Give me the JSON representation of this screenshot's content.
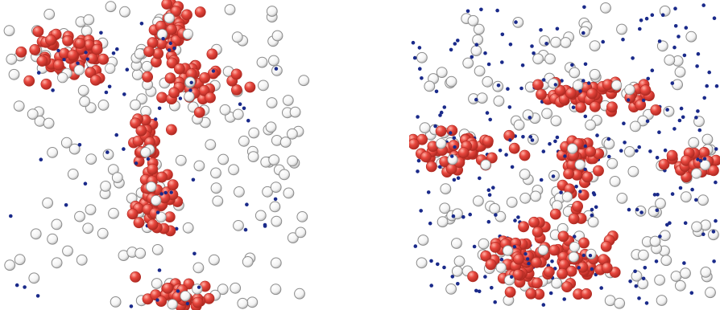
{
  "figure": {
    "background": "#ffffff",
    "colors": {
      "cluster_sphere": "#e8473e",
      "cluster_sphere_dark": "#b02a22",
      "free_sphere": "#f2f2f2",
      "free_sphere_edge": "#8c8c8c",
      "small_particle": "#1a2a8a"
    },
    "panels": [
      {
        "id": "left",
        "seed": 1337,
        "free_spheres": 170,
        "small_particles": 40,
        "clusters": [
          {
            "center": [
              0.22,
              0.19
            ],
            "spread": [
              0.12,
              0.08
            ],
            "count": 55
          },
          {
            "center": [
              0.54,
              0.1
            ],
            "spread": [
              0.06,
              0.08
            ],
            "count": 40
          },
          {
            "center": [
              0.62,
              0.26
            ],
            "spread": [
              0.08,
              0.07
            ],
            "count": 38
          },
          {
            "center": [
              0.47,
              0.47
            ],
            "spread": [
              0.04,
              0.09
            ],
            "count": 28
          },
          {
            "center": [
              0.5,
              0.65
            ],
            "spread": [
              0.06,
              0.09
            ],
            "count": 42
          },
          {
            "center": [
              0.56,
              0.95
            ],
            "spread": [
              0.09,
              0.04
            ],
            "count": 36
          }
        ]
      },
      {
        "id": "right",
        "seed": 2024,
        "free_spheres": 175,
        "small_particles": 230,
        "clusters": [
          {
            "center": [
              0.61,
              0.31
            ],
            "spread": [
              0.15,
              0.04
            ],
            "count": 52
          },
          {
            "center": [
              0.54,
              0.53
            ],
            "spread": [
              0.05,
              0.12
            ],
            "count": 48
          },
          {
            "center": [
              0.16,
              0.48
            ],
            "spread": [
              0.14,
              0.06
            ],
            "count": 46
          },
          {
            "center": [
              0.36,
              0.84
            ],
            "spread": [
              0.1,
              0.08
            ],
            "count": 60
          },
          {
            "center": [
              0.55,
              0.84
            ],
            "spread": [
              0.08,
              0.08
            ],
            "count": 46
          },
          {
            "center": [
              0.92,
              0.52
            ],
            "spread": [
              0.07,
              0.04
            ],
            "count": 26
          }
        ]
      }
    ]
  }
}
